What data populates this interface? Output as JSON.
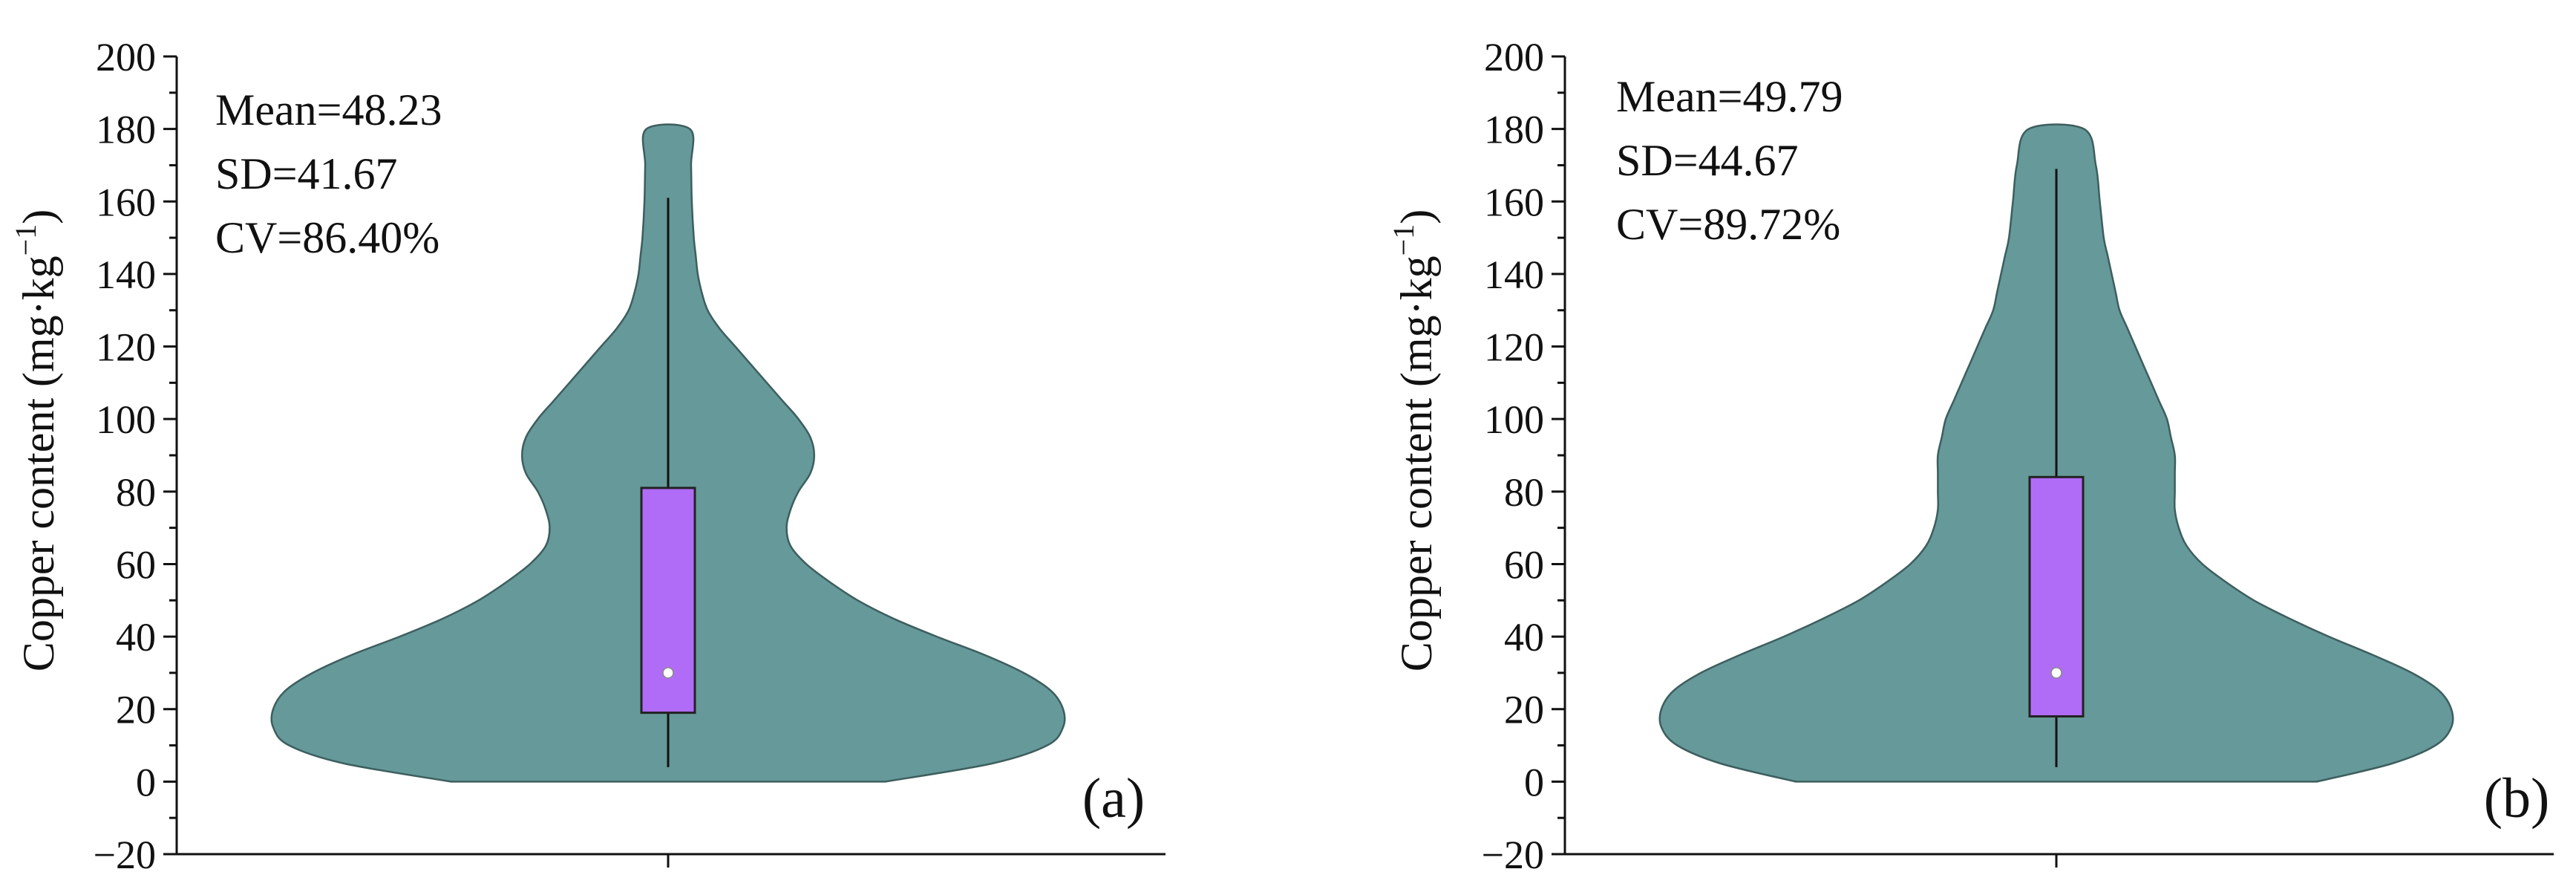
{
  "chart_data": [
    {
      "type": "violin",
      "panel_label": "(a)",
      "ylabel_main": "Copper content (mg·kg",
      "ylabel_sup": "−1",
      "ylabel_close": ")",
      "ylim": [
        -20,
        200
      ],
      "yticks": [
        -20,
        0,
        20,
        40,
        60,
        80,
        100,
        120,
        140,
        160,
        180,
        200
      ],
      "ytick_labels": [
        "−20",
        "0",
        "20",
        "40",
        "60",
        "80",
        "100",
        "120",
        "140",
        "160",
        "180",
        "200"
      ],
      "stats_text": [
        "Mean=48.23",
        "SD=41.67",
        "CV=86.40%"
      ],
      "box": {
        "q1": 19,
        "q3": 81,
        "median": 30,
        "whisker_low": 4,
        "whisker_high": 161
      },
      "density": {
        "y": [
          0,
          5,
          10,
          15,
          20,
          25,
          30,
          35,
          40,
          45,
          50,
          55,
          60,
          65,
          70,
          75,
          80,
          85,
          90,
          95,
          100,
          105,
          110,
          115,
          120,
          125,
          130,
          135,
          140,
          145,
          150,
          160,
          170,
          180
        ],
        "half_width": [
          0.55,
          0.82,
          0.96,
          1.0,
          1.0,
          0.97,
          0.9,
          0.8,
          0.68,
          0.57,
          0.48,
          0.41,
          0.35,
          0.31,
          0.3,
          0.31,
          0.33,
          0.36,
          0.37,
          0.36,
          0.33,
          0.29,
          0.25,
          0.21,
          0.17,
          0.13,
          0.1,
          0.085,
          0.075,
          0.07,
          0.065,
          0.06,
          0.058,
          0.055
        ]
      }
    },
    {
      "type": "violin",
      "panel_label": "(b)",
      "ylabel_main": "Copper content (mg·kg",
      "ylabel_sup": "−1",
      "ylabel_close": ")",
      "ylim": [
        -20,
        200
      ],
      "yticks": [
        -20,
        0,
        20,
        40,
        60,
        80,
        100,
        120,
        140,
        160,
        180,
        200
      ],
      "ytick_labels": [
        "−20",
        "0",
        "20",
        "40",
        "60",
        "80",
        "100",
        "120",
        "140",
        "160",
        "180",
        "200"
      ],
      "stats_text": [
        "Mean=49.79",
        "SD=44.67",
        "CV=89.72%"
      ],
      "box": {
        "q1": 18,
        "q3": 84,
        "median": 30,
        "whisker_low": 4,
        "whisker_high": 169
      },
      "density": {
        "y": [
          0,
          5,
          10,
          15,
          20,
          25,
          30,
          35,
          40,
          45,
          50,
          55,
          60,
          65,
          70,
          75,
          80,
          85,
          90,
          95,
          100,
          105,
          110,
          115,
          120,
          125,
          130,
          135,
          140,
          145,
          150,
          160,
          170,
          180
        ],
        "half_width": [
          0.66,
          0.85,
          0.96,
          1.0,
          1.0,
          0.97,
          0.9,
          0.8,
          0.69,
          0.59,
          0.5,
          0.43,
          0.37,
          0.33,
          0.31,
          0.3,
          0.3,
          0.3,
          0.3,
          0.29,
          0.28,
          0.26,
          0.24,
          0.22,
          0.2,
          0.18,
          0.16,
          0.15,
          0.14,
          0.13,
          0.12,
          0.11,
          0.1,
          0.07
        ]
      }
    }
  ]
}
